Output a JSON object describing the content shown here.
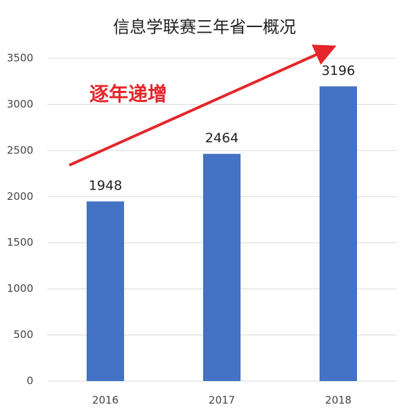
{
  "chart_data": {
    "type": "bar",
    "title": "信息学联赛三年省一概况",
    "annotation": "逐年递增",
    "categories": [
      "2016",
      "2017",
      "2018"
    ],
    "values": [
      1948,
      2464,
      3196
    ],
    "color": "#4472c4",
    "ylim": [
      0,
      3500
    ],
    "yticks": [
      0,
      500,
      1000,
      1500,
      2000,
      2500,
      3000,
      3500
    ],
    "grid": true
  }
}
